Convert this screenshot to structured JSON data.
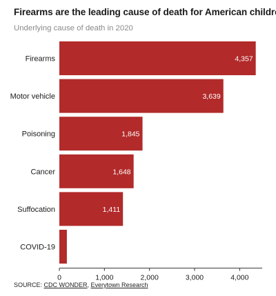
{
  "chart_data": {
    "type": "bar",
    "orientation": "horizontal",
    "title": "Firearms are the leading cause of death for American children",
    "subtitle": "Underlying cause of death in 2020",
    "categories": [
      "Firearms",
      "Motor vehicle",
      "Poisoning",
      "Cancer",
      "Suffocation",
      "COVID-19"
    ],
    "values": [
      4357,
      3639,
      1845,
      1648,
      1411,
      167
    ],
    "value_labels": [
      "4,357",
      "3,639",
      "1,845",
      "1,648",
      "1,411",
      ""
    ],
    "xlim": [
      0,
      4500
    ],
    "xticks": [
      0,
      1000,
      2000,
      3000,
      4000
    ],
    "xtick_labels": [
      "0",
      "1,000",
      "2,000",
      "3,000",
      "4,000"
    ],
    "grid": false,
    "bar_color": "#b22a2a"
  },
  "source": {
    "prefix": "SOURCE: ",
    "links": [
      "CDC WONDER",
      "Everytown Research"
    ],
    "separator": ", "
  }
}
